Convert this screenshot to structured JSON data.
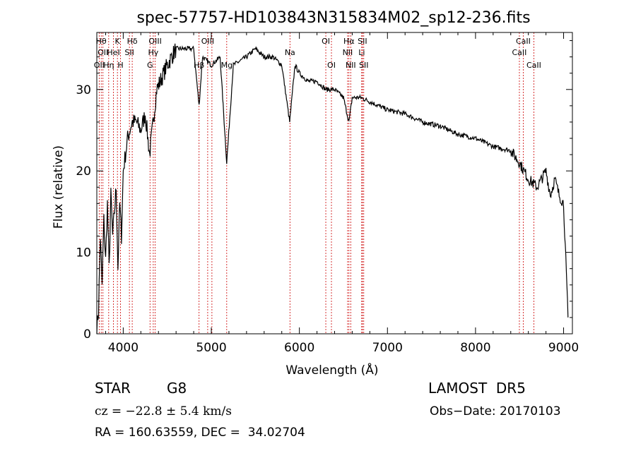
{
  "chart_data": {
    "type": "line",
    "title": "spec-57757-HD103843N315834M02_sp12-236.fits",
    "xlabel": "Wavelength (Å)",
    "ylabel": "Flux (relative)",
    "xlim": [
      3700,
      9100
    ],
    "ylim": [
      0,
      37
    ],
    "xticks": [
      4000,
      5000,
      6000,
      7000,
      8000,
      9000
    ],
    "yticks": [
      0,
      10,
      20,
      30
    ],
    "line_color": "#000000",
    "marker_color": "#cc0000",
    "series": [
      {
        "x": [
          3700,
          3720,
          3740,
          3760,
          3780,
          3800,
          3820,
          3840,
          3860,
          3880,
          3900,
          3920,
          3940,
          3960,
          3980,
          4000,
          4050,
          4100,
          4150,
          4200,
          4250,
          4300,
          4340,
          4380,
          4420,
          4500,
          4600,
          4700,
          4800,
          4861,
          4900,
          5000,
          5100,
          5175,
          5250,
          5400,
          5500,
          5600,
          5700,
          5800,
          5890,
          5950,
          6000,
          6100,
          6200,
          6300,
          6400,
          6500,
          6563,
          6600,
          6700,
          6800,
          6900,
          7000,
          7200,
          7400,
          7600,
          7800,
          8000,
          8200,
          8400,
          8500,
          8550,
          8600,
          8700,
          8800,
          8850,
          8900,
          8950,
          9000,
          9050
        ],
        "values": [
          0.5,
          3,
          12,
          6,
          14,
          9,
          16,
          8,
          17,
          12,
          15,
          18,
          8,
          16,
          12,
          20,
          24,
          26,
          26,
          25,
          27,
          22,
          26,
          30,
          31,
          33,
          35,
          35,
          35,
          28,
          34,
          33,
          34,
          21,
          33,
          34,
          35,
          34,
          34,
          33,
          26,
          33,
          32,
          31,
          31,
          30,
          30,
          29,
          26,
          29,
          29,
          28.5,
          28,
          27.5,
          27,
          26,
          25.5,
          24.5,
          24,
          23,
          22.5,
          21,
          20,
          19,
          18,
          20,
          17,
          19,
          17,
          16,
          2
        ]
      }
    ],
    "lines": [
      {
        "wavelength": 3727,
        "label": "OII",
        "row": 2
      },
      {
        "wavelength": 3750,
        "label": "Hθ",
        "row": 0
      },
      {
        "wavelength": 3770,
        "label": "OII",
        "row": 1
      },
      {
        "wavelength": 3835,
        "label": "Hη",
        "row": 2
      },
      {
        "wavelength": 3889,
        "label": "HeI",
        "row": 1
      },
      {
        "wavelength": 3934,
        "label": "K",
        "row": 0
      },
      {
        "wavelength": 3969,
        "label": "H",
        "row": 2
      },
      {
        "wavelength": 4070,
        "label": "SII",
        "row": 1
      },
      {
        "wavelength": 4102,
        "label": "Hδ",
        "row": 0
      },
      {
        "wavelength": 4304,
        "label": "G",
        "row": 2
      },
      {
        "wavelength": 4341,
        "label": "Hγ",
        "row": 1
      },
      {
        "wavelength": 4363,
        "label": "OIII",
        "row": 0
      },
      {
        "wavelength": 4861,
        "label": "Hβ",
        "row": 2
      },
      {
        "wavelength": 4959,
        "label": "OIII",
        "row": 0
      },
      {
        "wavelength": 5007,
        "label": "",
        "row": 0
      },
      {
        "wavelength": 5175,
        "label": "Mg",
        "row": 2
      },
      {
        "wavelength": 5893,
        "label": "Na",
        "row": 1
      },
      {
        "wavelength": 6300,
        "label": "OI",
        "row": 0
      },
      {
        "wavelength": 6364,
        "label": "OI",
        "row": 2
      },
      {
        "wavelength": 6548,
        "label": "NII",
        "row": 1
      },
      {
        "wavelength": 6563,
        "label": "Hα",
        "row": 0
      },
      {
        "wavelength": 6583,
        "label": "NII",
        "row": 2
      },
      {
        "wavelength": 6708,
        "label": "Li",
        "row": 1
      },
      {
        "wavelength": 6716,
        "label": "SII",
        "row": 0
      },
      {
        "wavelength": 6731,
        "label": "SII",
        "row": 2
      },
      {
        "wavelength": 8498,
        "label": "CaII",
        "row": 1
      },
      {
        "wavelength": 8542,
        "label": "CaII",
        "row": 0
      },
      {
        "wavelength": 8662,
        "label": "CaII",
        "row": 2
      }
    ]
  },
  "info": {
    "object_class": "STAR",
    "subclass": "G8",
    "survey": "LAMOST  DR5",
    "cz": "cz = −22.8 ± 5.4 km/s",
    "obs_date": "Obs−Date: 20170103",
    "coords": "RA = 160.63559, DEC =  34.02704"
  }
}
